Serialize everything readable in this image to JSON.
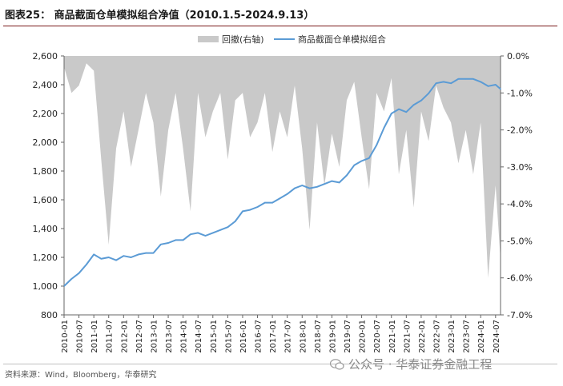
{
  "title": "图表25：  商品截面仓单模拟组合净值（2010.1.5-2024.9.13）",
  "source": "资料来源：Wind，Bloomberg，华泰研究",
  "watermark": "公众号 · 华泰证券金融工程",
  "watermark_icon": "wechat-icon",
  "chart_data": {
    "type": "line",
    "title": "商品截面仓单模拟组合净值（2010.1.5-2024.9.13）",
    "legend": {
      "placement": "top-right",
      "entries": [
        "回撤(右轴)",
        "商品截面仓单模拟组合"
      ]
    },
    "colors": {
      "nav": "#5b9bd5",
      "drawdown": "#c9c9c9"
    },
    "x_start": "2010-01",
    "x_end": "2024-09",
    "x_ticks": [
      "2010-01",
      "2010-07",
      "2011-01",
      "2011-07",
      "2012-01",
      "2012-07",
      "2013-01",
      "2013-07",
      "2014-01",
      "2014-07",
      "2015-01",
      "2015-07",
      "2016-01",
      "2016-07",
      "2017-01",
      "2017-07",
      "2018-01",
      "2018-07",
      "2019-01",
      "2019-07",
      "2020-01",
      "2020-07",
      "2021-01",
      "2021-07",
      "2022-01",
      "2022-07",
      "2023-01",
      "2023-07",
      "2024-01",
      "2024-07"
    ],
    "y_left": {
      "ticks": [
        "800",
        "1,000",
        "1,200",
        "1,400",
        "1,600",
        "1,800",
        "2,000",
        "2,200",
        "2,400",
        "2,600"
      ],
      "range": [
        800,
        2600
      ]
    },
    "y_right": {
      "ticks": [
        "0.0%",
        "-1.0%",
        "-2.0%",
        "-3.0%",
        "-4.0%",
        "-5.0%",
        "-6.0%",
        "-7.0%"
      ],
      "range": [
        -7.0,
        0.0
      ]
    },
    "series": [
      {
        "name": "商品截面仓单模拟组合",
        "axis": "left",
        "x": [
          "2010-01",
          "2010-04",
          "2010-07",
          "2010-10",
          "2011-01",
          "2011-04",
          "2011-07",
          "2011-10",
          "2012-01",
          "2012-04",
          "2012-07",
          "2012-10",
          "2013-01",
          "2013-04",
          "2013-07",
          "2013-10",
          "2014-01",
          "2014-04",
          "2014-07",
          "2014-10",
          "2015-01",
          "2015-04",
          "2015-07",
          "2015-10",
          "2016-01",
          "2016-04",
          "2016-07",
          "2016-10",
          "2017-01",
          "2017-04",
          "2017-07",
          "2017-10",
          "2018-01",
          "2018-04",
          "2018-07",
          "2018-10",
          "2019-01",
          "2019-04",
          "2019-07",
          "2019-10",
          "2020-01",
          "2020-04",
          "2020-07",
          "2020-10",
          "2021-01",
          "2021-04",
          "2021-07",
          "2021-10",
          "2022-01",
          "2022-04",
          "2022-07",
          "2022-10",
          "2023-01",
          "2023-04",
          "2023-07",
          "2023-10",
          "2024-01",
          "2024-04",
          "2024-07",
          "2024-09"
        ],
        "values": [
          1000,
          1050,
          1090,
          1150,
          1220,
          1190,
          1200,
          1180,
          1210,
          1200,
          1220,
          1230,
          1230,
          1290,
          1300,
          1320,
          1320,
          1360,
          1370,
          1350,
          1370,
          1390,
          1410,
          1450,
          1520,
          1530,
          1550,
          1580,
          1580,
          1610,
          1640,
          1680,
          1700,
          1680,
          1690,
          1710,
          1730,
          1720,
          1770,
          1840,
          1870,
          1890,
          1980,
          2100,
          2200,
          2230,
          2210,
          2260,
          2290,
          2340,
          2410,
          2420,
          2410,
          2440,
          2440,
          2440,
          2420,
          2390,
          2400,
          2370
        ]
      },
      {
        "name": "回撤(右轴)",
        "axis": "right",
        "x": [
          "2010-01",
          "2010-04",
          "2010-07",
          "2010-10",
          "2011-01",
          "2011-04",
          "2011-07",
          "2011-10",
          "2012-01",
          "2012-04",
          "2012-07",
          "2012-10",
          "2013-01",
          "2013-04",
          "2013-07",
          "2013-10",
          "2014-01",
          "2014-04",
          "2014-07",
          "2014-10",
          "2015-01",
          "2015-04",
          "2015-07",
          "2015-10",
          "2016-01",
          "2016-04",
          "2016-07",
          "2016-10",
          "2017-01",
          "2017-04",
          "2017-07",
          "2017-10",
          "2018-01",
          "2018-04",
          "2018-07",
          "2018-10",
          "2019-01",
          "2019-04",
          "2019-07",
          "2019-10",
          "2020-01",
          "2020-04",
          "2020-07",
          "2020-10",
          "2021-01",
          "2021-04",
          "2021-07",
          "2021-10",
          "2022-01",
          "2022-04",
          "2022-07",
          "2022-10",
          "2023-01",
          "2023-04",
          "2023-07",
          "2023-10",
          "2024-01",
          "2024-04",
          "2024-07",
          "2024-09"
        ],
        "values": [
          -0.3,
          -1.0,
          -0.8,
          -0.2,
          -0.4,
          -2.8,
          -5.1,
          -2.5,
          -1.5,
          -3.0,
          -2.0,
          -1.0,
          -1.8,
          -3.8,
          -2.0,
          -1.0,
          -2.5,
          -4.2,
          -1.0,
          -2.2,
          -1.5,
          -1.0,
          -2.8,
          -1.2,
          -1.0,
          -2.2,
          -1.8,
          -1.0,
          -2.6,
          -1.5,
          -2.2,
          -0.8,
          -2.5,
          -4.7,
          -1.8,
          -3.5,
          -2.1,
          -3.0,
          -1.2,
          -0.7,
          -2.2,
          -3.6,
          -1.0,
          -1.5,
          -0.6,
          -3.2,
          -2.0,
          -4.1,
          -1.5,
          -2.3,
          -0.8,
          -1.4,
          -1.8,
          -2.9,
          -2.0,
          -3.2,
          -1.8,
          -6.0,
          -3.5,
          -5.5
        ]
      }
    ]
  }
}
